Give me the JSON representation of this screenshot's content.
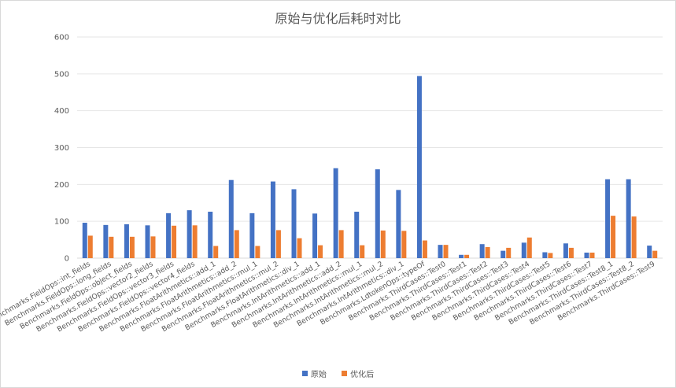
{
  "chart_data": {
    "type": "bar",
    "title": "原始与优化后耗时对比",
    "ylim": [
      0,
      600
    ],
    "yticks": [
      0,
      100,
      200,
      300,
      400,
      500,
      600
    ],
    "grid": "horizontal",
    "legend_position": "bottom",
    "categories": [
      "Benchmarks.FieldOps::int_fields",
      "Benchmarks.FieldOps::long_fields",
      "Benchmarks.FieldOps::object_fields",
      "Benchmarks.FieldOps::vector2_fields",
      "Benchmarks.FieldOps::vector3_fields",
      "Benchmarks.FieldOps::vector4_fields",
      "Benchmarks.FloatArithmetics::add_1",
      "Benchmarks.FloatArithmetics::add_2",
      "Benchmarks.FloatArithmetics::mul_1",
      "Benchmarks.FloatArithmetics::mul_2",
      "Benchmarks.FloatArithmetics::div_1",
      "Benchmarks.IntArithmetics::add_1",
      "Benchmarks.IntArithmetics::add_2",
      "Benchmarks.IntArithmetics::mul_1",
      "Benchmarks.IntArithmetics::mul_2",
      "Benchmarks.IntArithmetics::div_1",
      "Benchmarks.LdtokenOps::typeOf",
      "Benchmarks.ThirdCases::Test0",
      "Benchmarks.ThirdCases::Test1",
      "Benchmarks.ThirdCases::Test2",
      "Benchmarks.ThirdCases::Test3",
      "Benchmarks.ThirdCases::Test4",
      "Benchmarks.ThirdCases::Test5",
      "Benchmarks.ThirdCases::Test6",
      "Benchmarks.ThirdCases::Test7",
      "Benchmarks.ThirdCases::Test8_1",
      "Benchmarks.ThirdCases::Test8_2",
      "Benchmarks.ThirdCases::Test9"
    ],
    "series": [
      {
        "name": "原始",
        "color": "#4472c4",
        "values": [
          96,
          90,
          92,
          89,
          122,
          130,
          126,
          212,
          122,
          208,
          187,
          121,
          244,
          126,
          241,
          185,
          494,
          36,
          9,
          38,
          20,
          42,
          16,
          40,
          15,
          214,
          214,
          34
        ]
      },
      {
        "name": "优化后",
        "color": "#ed7d31",
        "values": [
          61,
          58,
          58,
          59,
          88,
          89,
          33,
          76,
          33,
          76,
          54,
          35,
          76,
          35,
          75,
          74,
          48,
          36,
          9,
          30,
          28,
          56,
          14,
          28,
          15,
          115,
          113,
          20
        ]
      }
    ]
  }
}
